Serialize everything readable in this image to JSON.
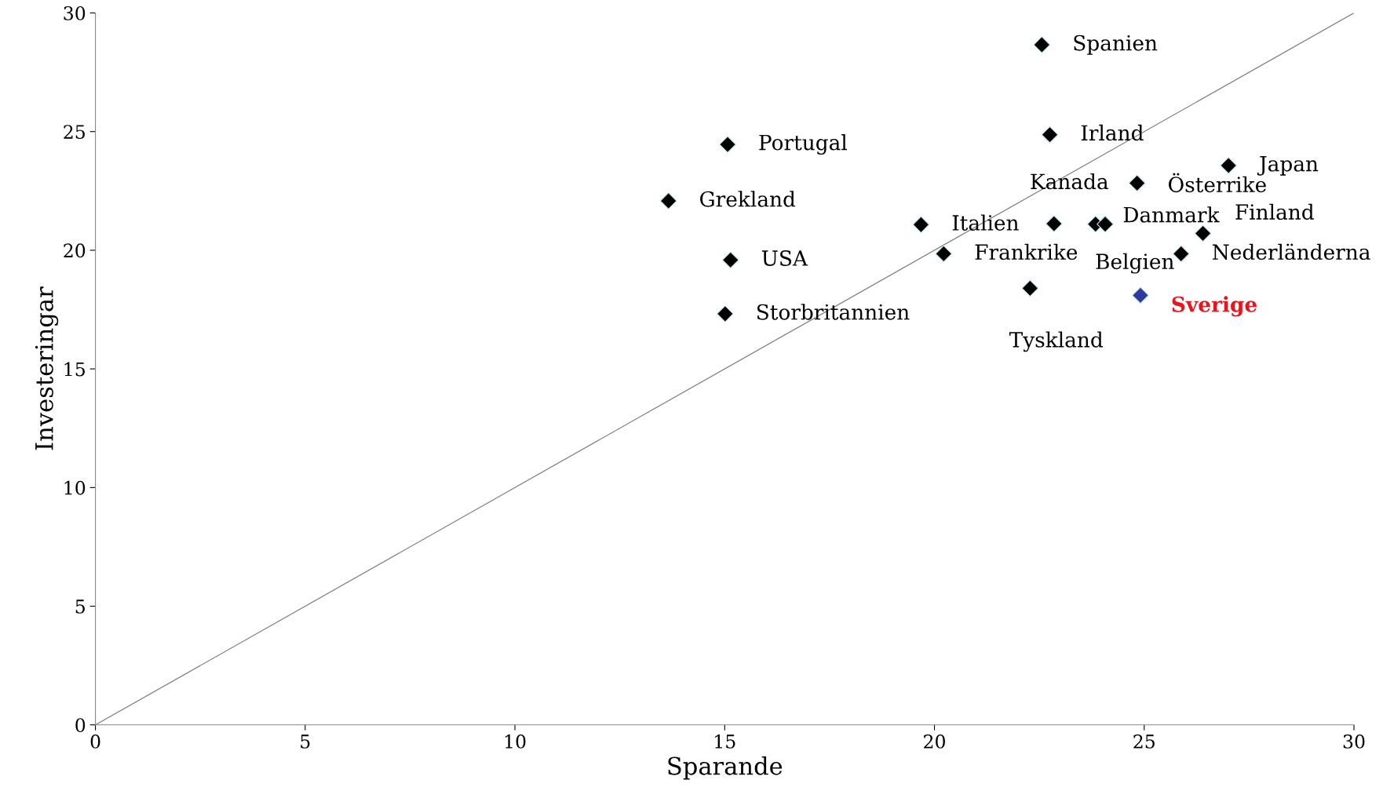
{
  "chart_data": {
    "type": "scatter",
    "xlabel": "Sparande",
    "ylabel": "Investeringar",
    "xlim": [
      0,
      30
    ],
    "ylim": [
      0,
      30
    ],
    "xticks": [
      0,
      5,
      10,
      15,
      20,
      25,
      30
    ],
    "yticks": [
      0,
      5,
      10,
      15,
      20,
      25,
      30
    ],
    "grid": false,
    "marker": "diamond",
    "series": [
      {
        "type": "line",
        "marker": "none",
        "color": "#808080",
        "x": [
          0,
          30
        ],
        "values": [
          0,
          30
        ]
      },
      {
        "color": "#000000",
        "x": [
          22.56,
          22.75,
          15.07,
          13.66,
          27.01,
          24.83,
          19.68,
          22.85,
          23.84,
          24.07,
          26.4,
          15.14,
          20.22,
          25.88,
          22.28,
          15.01
        ],
        "values": [
          28.66,
          24.87,
          24.46,
          22.08,
          23.57,
          22.83,
          21.08,
          21.12,
          21.1,
          21.1,
          20.71,
          19.59,
          19.85,
          19.85,
          18.4,
          17.32
        ]
      },
      {
        "color": "#2e3a9e",
        "x": [
          24.91
        ],
        "values": [
          18.1
        ]
      }
    ],
    "annotations": [
      {
        "text": "Spanien",
        "x": 22.56,
        "y": 28.66
      },
      {
        "text": "Irland",
        "x": 22.75,
        "y": 24.87
      },
      {
        "text": "Portugal",
        "x": 15.07,
        "y": 24.46
      },
      {
        "text": "Grekland",
        "x": 13.66,
        "y": 22.08
      },
      {
        "text": "Japan",
        "x": 27.01,
        "y": 23.57
      },
      {
        "text": "Österrike",
        "x": 24.83,
        "y": 22.83
      },
      {
        "text": "Italien",
        "x": 19.68,
        "y": 21.08
      },
      {
        "text": "Kanada",
        "x": 22.85,
        "y": 21.12
      },
      {
        "text": "Belgien",
        "x": 23.84,
        "y": 21.1
      },
      {
        "text": "Danmark",
        "x": 24.07,
        "y": 21.1
      },
      {
        "text": "Finland",
        "x": 26.4,
        "y": 20.71
      },
      {
        "text": "USA",
        "x": 15.14,
        "y": 19.59
      },
      {
        "text": "Frankrike",
        "x": 20.22,
        "y": 19.85
      },
      {
        "text": "Nederländerna",
        "x": 25.88,
        "y": 19.85
      },
      {
        "text": "Tyskland",
        "x": 22.28,
        "y": 18.4
      },
      {
        "text": "Storbritannien",
        "x": 15.01,
        "y": 17.32
      },
      {
        "text": "Sverige",
        "x": 24.91,
        "y": 18.1
      }
    ]
  }
}
